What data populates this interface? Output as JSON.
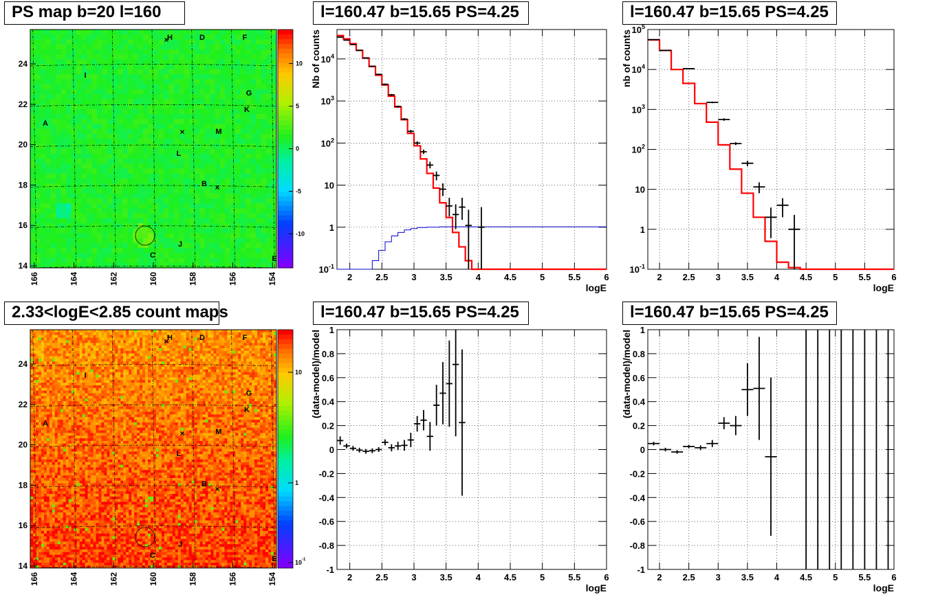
{
  "maps": [
    {
      "title": "PS map b=20 l=160",
      "x_ticks": [
        "166",
        "164",
        "162",
        "160",
        "158",
        "156",
        "154"
      ],
      "y_ticks": [
        "14",
        "16",
        "18",
        "20",
        "22",
        "24"
      ],
      "scale_type": "linear",
      "scale_ticks": [
        "10",
        "5",
        "0",
        "-5",
        "-10"
      ],
      "labels": [
        "H",
        "D",
        "F",
        "I",
        "G",
        "K",
        "A",
        "M",
        "L",
        "B",
        "J",
        "C",
        "E"
      ]
    },
    {
      "title": "2.33<logE<2.85 count maps",
      "x_ticks": [
        "166",
        "164",
        "162",
        "160",
        "158",
        "156",
        "154"
      ],
      "y_ticks": [
        "14",
        "16",
        "18",
        "20",
        "22",
        "24"
      ],
      "scale_type": "log",
      "scale_ticks": [
        "10",
        "1",
        "10^-1"
      ],
      "labels": [
        "H",
        "D",
        "F",
        "I",
        "G",
        "K",
        "A",
        "M",
        "L",
        "B",
        "J",
        "C",
        "E"
      ]
    }
  ],
  "chart_data": [
    {
      "type": "line",
      "title": "l=160.47 b=15.65 PS=4.25",
      "xlabel": "logE",
      "ylabel": "Nb of counts",
      "xlim": [
        1.8,
        6
      ],
      "ylim": [
        0.1,
        50000
      ],
      "yscale": "log",
      "grid": true,
      "x_ticks": [
        "2",
        "2.5",
        "3",
        "3.5",
        "4",
        "4.5",
        "5",
        "5.5",
        "6"
      ],
      "y_ticks": [
        "10^-1",
        "1",
        "10",
        "10^2",
        "10^3",
        "10^4"
      ],
      "series": [
        {
          "color": "#ff0000",
          "edges": [
            1.8,
            1.9,
            2.0,
            2.1,
            2.2,
            2.3,
            2.4,
            2.5,
            2.6,
            2.7,
            2.8,
            2.9,
            3.0,
            3.1,
            3.2,
            3.3,
            3.4,
            3.5,
            3.6,
            3.7,
            3.8,
            3.9,
            4.0,
            4.1,
            4.2,
            4.3,
            6.0
          ],
          "values": [
            36000,
            30000,
            23000,
            16000,
            10500,
            6600,
            4100,
            2400,
            1300,
            720,
            360,
            170,
            86,
            42,
            19,
            8.5,
            3.8,
            1.7,
            0.75,
            0.34,
            0.16,
            0.1,
            0.1,
            0.1,
            0.1,
            0.1
          ]
        },
        {
          "color": "#0000cc",
          "edges": [
            1.8,
            2.35,
            2.45,
            2.55,
            2.65,
            2.75,
            2.85,
            2.95,
            3.05,
            3.2,
            3.4,
            6.0
          ],
          "values": [
            0.1,
            0.16,
            0.28,
            0.45,
            0.62,
            0.75,
            0.86,
            0.93,
            0.98,
            1.0,
            1.02
          ]
        }
      ],
      "points": [
        {
          "x": 1.85,
          "y": 33000,
          "lo": 32000,
          "hi": 34000,
          "xerr": 0.05
        },
        {
          "x": 1.95,
          "y": 28000,
          "lo": 27300,
          "hi": 28700,
          "xerr": 0.05
        },
        {
          "x": 2.05,
          "y": 22000,
          "lo": 21500,
          "hi": 22500,
          "xerr": 0.05
        },
        {
          "x": 2.15,
          "y": 16000,
          "lo": 15600,
          "hi": 16400,
          "xerr": 0.05
        },
        {
          "x": 2.25,
          "y": 10500,
          "lo": 10200,
          "hi": 10800,
          "xerr": 0.05
        },
        {
          "x": 2.35,
          "y": 6700,
          "lo": 6500,
          "hi": 6900,
          "xerr": 0.05
        },
        {
          "x": 2.45,
          "y": 4300,
          "lo": 4150,
          "hi": 4450,
          "xerr": 0.05
        },
        {
          "x": 2.55,
          "y": 2500,
          "lo": 2400,
          "hi": 2600,
          "xerr": 0.05
        },
        {
          "x": 2.65,
          "y": 1400,
          "lo": 1330,
          "hi": 1470,
          "xerr": 0.05
        },
        {
          "x": 2.75,
          "y": 740,
          "lo": 700,
          "hi": 780,
          "xerr": 0.05
        },
        {
          "x": 2.85,
          "y": 370,
          "lo": 350,
          "hi": 390,
          "xerr": 0.05
        },
        {
          "x": 2.95,
          "y": 190,
          "lo": 175,
          "hi": 205,
          "xerr": 0.05
        },
        {
          "x": 3.05,
          "y": 100,
          "lo": 90,
          "hi": 110,
          "xerr": 0.05
        },
        {
          "x": 3.15,
          "y": 62,
          "lo": 55,
          "hi": 70,
          "xerr": 0.05
        },
        {
          "x": 3.25,
          "y": 30,
          "lo": 25,
          "hi": 36,
          "xerr": 0.05
        },
        {
          "x": 3.35,
          "y": 17,
          "lo": 13,
          "hi": 21,
          "xerr": 0.05
        },
        {
          "x": 3.45,
          "y": 8,
          "lo": 5.5,
          "hi": 11,
          "xerr": 0.05
        },
        {
          "x": 3.55,
          "y": 3.2,
          "lo": 1.8,
          "hi": 5,
          "xerr": 0.05
        },
        {
          "x": 3.65,
          "y": 2,
          "lo": 0.9,
          "hi": 3.5,
          "xerr": 0.05
        },
        {
          "x": 3.75,
          "y": 3,
          "lo": 1.5,
          "hi": 5,
          "xerr": 0.05
        },
        {
          "x": 3.85,
          "y": 1.1,
          "lo": 0.1,
          "hi": 2.6,
          "xerr": 0.05
        },
        {
          "x": 4.05,
          "y": 1,
          "lo": 0.1,
          "hi": 3,
          "xerr": 0.05
        }
      ]
    },
    {
      "type": "line",
      "title": "l=160.47 b=15.65 PS=4.25",
      "xlabel": "logE",
      "ylabel": "nb of counts",
      "xlim": [
        1.8,
        6
      ],
      "ylim": [
        0.1,
        100000
      ],
      "yscale": "log",
      "grid": true,
      "x_ticks": [
        "2",
        "2.5",
        "3",
        "3.5",
        "4",
        "4.5",
        "5",
        "5.5",
        "6"
      ],
      "y_ticks": [
        "10^-1",
        "1",
        "10",
        "10^2",
        "10^3",
        "10^4",
        "10^5"
      ],
      "series": [
        {
          "color": "#ff0000",
          "edges": [
            1.8,
            2.0,
            2.2,
            2.4,
            2.6,
            2.8,
            3.0,
            3.2,
            3.4,
            3.6,
            3.8,
            4.0,
            4.2,
            4.4,
            4.6,
            6.0
          ],
          "values": [
            55000,
            30000,
            10000,
            4500,
            1400,
            480,
            130,
            32,
            8,
            2,
            0.5,
            0.15,
            0.11,
            0.1,
            0.1
          ]
        }
      ],
      "points": [
        {
          "x": 1.9,
          "y": 56000,
          "lo": 55000,
          "hi": 57000,
          "xerr": 0.1
        },
        {
          "x": 2.1,
          "y": 30000,
          "lo": 29500,
          "hi": 30500,
          "xerr": 0.1
        },
        {
          "x": 2.5,
          "y": 10500,
          "lo": 10300,
          "hi": 10700,
          "xerr": 0.1
        },
        {
          "x": 2.9,
          "y": 1500,
          "lo": 1430,
          "hi": 1570,
          "xerr": 0.1
        },
        {
          "x": 3.1,
          "y": 560,
          "lo": 520,
          "hi": 600,
          "xerr": 0.1
        },
        {
          "x": 3.3,
          "y": 140,
          "lo": 128,
          "hi": 152,
          "xerr": 0.1
        },
        {
          "x": 3.5,
          "y": 45,
          "lo": 38,
          "hi": 52,
          "xerr": 0.1
        },
        {
          "x": 3.7,
          "y": 11.5,
          "lo": 8,
          "hi": 15,
          "xerr": 0.1
        },
        {
          "x": 3.9,
          "y": 2,
          "lo": 0.6,
          "hi": 3.5,
          "xerr": 0.1
        },
        {
          "x": 4.1,
          "y": 4,
          "lo": 2,
          "hi": 6,
          "xerr": 0.1
        },
        {
          "x": 4.3,
          "y": 1,
          "lo": 0.1,
          "hi": 2.3,
          "xerr": 0.1
        }
      ]
    },
    {
      "type": "scatter",
      "title": "l=160.47 b=15.65 PS=4.25",
      "xlabel": "logE",
      "ylabel": "(data-model)/model",
      "xlim": [
        1.8,
        6
      ],
      "ylim": [
        -1,
        1
      ],
      "grid": true,
      "x_ticks": [
        "2",
        "2.5",
        "3",
        "3.5",
        "4",
        "4.5",
        "5",
        "5.5",
        "6"
      ],
      "y_ticks": [
        "-1",
        "-0.8",
        "-0.6",
        "-0.4",
        "-0.2",
        "0",
        "0.2",
        "0.4",
        "0.6",
        "0.8",
        "1"
      ],
      "points": [
        {
          "x": 1.85,
          "y": 0.075,
          "lo": 0.04,
          "hi": 0.11,
          "xerr": 0.05
        },
        {
          "x": 1.95,
          "y": 0.03,
          "lo": 0.01,
          "hi": 0.05,
          "xerr": 0.05
        },
        {
          "x": 2.05,
          "y": 0.01,
          "lo": -0.01,
          "hi": 0.03,
          "xerr": 0.05
        },
        {
          "x": 2.15,
          "y": -0.005,
          "lo": -0.025,
          "hi": 0.015,
          "xerr": 0.05
        },
        {
          "x": 2.25,
          "y": -0.015,
          "lo": -0.035,
          "hi": 0.005,
          "xerr": 0.05
        },
        {
          "x": 2.35,
          "y": -0.01,
          "lo": -0.03,
          "hi": 0.01,
          "xerr": 0.05
        },
        {
          "x": 2.45,
          "y": 0.0,
          "lo": -0.02,
          "hi": 0.02,
          "xerr": 0.05
        },
        {
          "x": 2.55,
          "y": 0.06,
          "lo": 0.035,
          "hi": 0.085,
          "xerr": 0.05
        },
        {
          "x": 2.65,
          "y": 0.015,
          "lo": -0.015,
          "hi": 0.045,
          "xerr": 0.05
        },
        {
          "x": 2.75,
          "y": 0.03,
          "lo": -0.005,
          "hi": 0.065,
          "xerr": 0.05
        },
        {
          "x": 2.85,
          "y": 0.035,
          "lo": -0.01,
          "hi": 0.08,
          "xerr": 0.05
        },
        {
          "x": 2.95,
          "y": 0.08,
          "lo": 0.02,
          "hi": 0.14,
          "xerr": 0.05
        },
        {
          "x": 3.05,
          "y": 0.215,
          "lo": 0.15,
          "hi": 0.28,
          "xerr": 0.05
        },
        {
          "x": 3.15,
          "y": 0.245,
          "lo": 0.16,
          "hi": 0.33,
          "xerr": 0.05
        },
        {
          "x": 3.25,
          "y": 0.11,
          "lo": -0.01,
          "hi": 0.23,
          "xerr": 0.05
        },
        {
          "x": 3.35,
          "y": 0.37,
          "lo": 0.2,
          "hi": 0.54,
          "xerr": 0.05
        },
        {
          "x": 3.45,
          "y": 0.47,
          "lo": 0.21,
          "hi": 0.73,
          "xerr": 0.05
        },
        {
          "x": 3.55,
          "y": 0.55,
          "lo": 0.19,
          "hi": 0.91,
          "xerr": 0.05
        },
        {
          "x": 3.65,
          "y": 0.71,
          "lo": 0.11,
          "hi": 1.0,
          "xerr": 0.05
        },
        {
          "x": 3.75,
          "y": 0.225,
          "lo": -0.385,
          "hi": 0.835,
          "xerr": 0.05
        }
      ]
    },
    {
      "type": "scatter",
      "title": "l=160.47 b=15.65 PS=4.25",
      "xlabel": "logE",
      "ylabel": "(data-model)/model",
      "xlim": [
        1.8,
        6
      ],
      "ylim": [
        -1,
        1
      ],
      "grid": true,
      "x_ticks": [
        "2",
        "2.5",
        "3",
        "3.5",
        "4",
        "4.5",
        "5",
        "5.5",
        "6"
      ],
      "y_ticks": [
        "-1",
        "-0.8",
        "-0.6",
        "-0.4",
        "-0.2",
        "0",
        "0.2",
        "0.4",
        "0.6",
        "0.8",
        "1"
      ],
      "points": [
        {
          "x": 1.9,
          "y": 0.05,
          "lo": 0.035,
          "hi": 0.065,
          "xerr": 0.1
        },
        {
          "x": 2.1,
          "y": 0.0,
          "lo": -0.015,
          "hi": 0.015,
          "xerr": 0.1
        },
        {
          "x": 2.3,
          "y": -0.02,
          "lo": -0.035,
          "hi": -0.005,
          "xerr": 0.1
        },
        {
          "x": 2.5,
          "y": 0.025,
          "lo": 0.01,
          "hi": 0.04,
          "xerr": 0.1
        },
        {
          "x": 2.7,
          "y": 0.015,
          "lo": -0.005,
          "hi": 0.035,
          "xerr": 0.1
        },
        {
          "x": 2.9,
          "y": 0.05,
          "lo": 0.02,
          "hi": 0.08,
          "xerr": 0.1
        },
        {
          "x": 3.1,
          "y": 0.22,
          "lo": 0.17,
          "hi": 0.27,
          "xerr": 0.1
        },
        {
          "x": 3.3,
          "y": 0.2,
          "lo": 0.12,
          "hi": 0.28,
          "xerr": 0.1
        },
        {
          "x": 3.5,
          "y": 0.5,
          "lo": 0.28,
          "hi": 0.72,
          "xerr": 0.1
        },
        {
          "x": 3.7,
          "y": 0.51,
          "lo": 0.08,
          "hi": 0.94,
          "xerr": 0.1
        },
        {
          "x": 3.9,
          "y": -0.06,
          "lo": -0.72,
          "hi": 0.6,
          "xerr": 0.1
        },
        {
          "x": 4.5,
          "y": 1,
          "lo": -1,
          "hi": 1,
          "xerr": 0
        },
        {
          "x": 4.7,
          "y": 1,
          "lo": -1,
          "hi": 1,
          "xerr": 0
        },
        {
          "x": 4.9,
          "y": 1,
          "lo": -1,
          "hi": 1,
          "xerr": 0
        },
        {
          "x": 5.1,
          "y": 1,
          "lo": -1,
          "hi": 1,
          "xerr": 0
        },
        {
          "x": 5.3,
          "y": 1,
          "lo": -1,
          "hi": 1,
          "xerr": 0
        },
        {
          "x": 5.5,
          "y": 1,
          "lo": -1,
          "hi": 1,
          "xerr": 0
        },
        {
          "x": 5.7,
          "y": 1,
          "lo": -1,
          "hi": 1,
          "xerr": 0
        },
        {
          "x": 5.9,
          "y": 1,
          "lo": -1,
          "hi": 1,
          "xerr": 0
        }
      ]
    }
  ]
}
